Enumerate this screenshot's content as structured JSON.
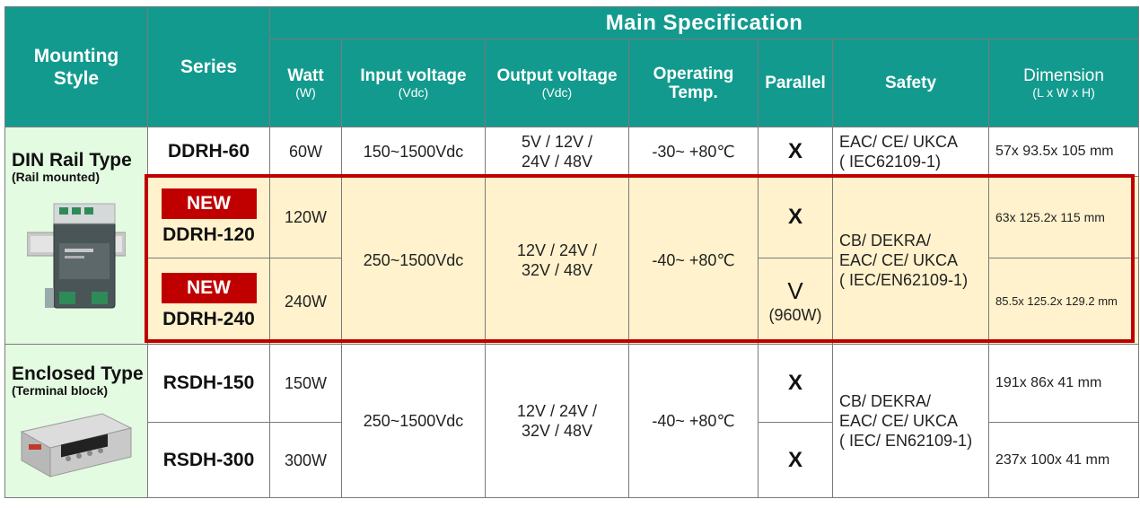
{
  "header": {
    "mounting_style": "Mounting Style",
    "series": "Series",
    "main_spec": "Main  Specification",
    "watt": "Watt",
    "watt_unit": "(W)",
    "input_voltage": "Input voltage",
    "input_unit": "(Vdc)",
    "output_voltage": "Output voltage",
    "output_unit": "(Vdc)",
    "operating_temp_line1": "Operating",
    "operating_temp_line2": "Temp.",
    "parallel": "Parallel",
    "safety": "Safety",
    "dimension": "Dimension",
    "dimension_unit": "(L x W x  H)"
  },
  "groups": [
    {
      "type": "DIN Rail Type",
      "note": "(Rail mounted)",
      "image_icon": "din-rail-power-supply-image"
    },
    {
      "type": "Enclosed Type",
      "note": "(Terminal block)",
      "image_icon": "enclosed-power-supply-image"
    }
  ],
  "rows": {
    "ddrh60": {
      "series": "DDRH-60",
      "watt": "60W",
      "input": "150~1500Vdc",
      "output_line1": "5V / 12V /",
      "output_line2": "24V / 48V",
      "temp": "-30~ +80℃",
      "parallel": "X",
      "safety_line1": "EAC/ CE/ UKCA",
      "safety_line2": "( IEC62109-1)",
      "dimension": "57x 93.5x 105 mm"
    },
    "ddrh120": {
      "badge": "NEW",
      "series": "DDRH-120",
      "watt": "120W",
      "parallel": "X",
      "dimension": "63x 125.2x 115 mm"
    },
    "ddrh240": {
      "badge": "NEW",
      "series": "DDRH-240",
      "watt": "240W",
      "parallel": "V",
      "parallel_note": "(960W)",
      "dimension": "85.5x 125.2x 129.2 mm"
    },
    "ddrh_shared": {
      "input": "250~1500Vdc",
      "output_line1": "12V / 24V /",
      "output_line2": "32V / 48V",
      "temp": "-40~ +80℃",
      "safety_line1": "CB/ DEKRA/",
      "safety_line2": "EAC/ CE/ UKCA",
      "safety_line3": "( IEC/EN62109-1)"
    },
    "rsdh150": {
      "series": "RSDH-150",
      "watt": "150W",
      "parallel": "X",
      "dimension": "191x 86x 41 mm"
    },
    "rsdh300": {
      "series": "RSDH-300",
      "watt": "300W",
      "parallel": "X",
      "dimension": "237x 100x 41 mm"
    },
    "rsdh_shared": {
      "input": "250~1500Vdc",
      "output_line1": "12V / 24V /",
      "output_line2": "32V / 48V",
      "temp": "-40~ +80℃",
      "safety_line1": "CB/ DEKRA/",
      "safety_line2": "EAC/ CE/ UKCA",
      "safety_line3": "( IEC/ EN62109-1)"
    }
  },
  "colors": {
    "header_bg": "#139a8e",
    "mounting_bg": "#e3fbe1",
    "highlight_bg": "#fff2cc",
    "highlight_border": "#c00000",
    "badge_bg": "#c00000"
  }
}
